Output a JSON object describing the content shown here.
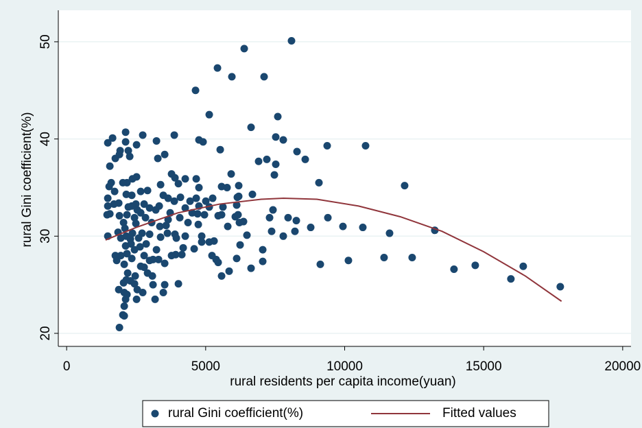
{
  "chart_data": {
    "type": "scatter",
    "x_label": "rural residents per capita income(yuan)",
    "y_label": "rural Gini coefficient(%)",
    "xlim": [
      -300,
      20300
    ],
    "ylim": [
      18.66,
      53.24
    ],
    "xticks": [
      0,
      5000,
      10000,
      15000,
      20000
    ],
    "yticks": [
      20,
      30,
      40,
      50
    ],
    "grid": true,
    "legend_position": "bottom",
    "series": [
      {
        "name": "rural Gini coefficient(%)",
        "color": "#1a476f",
        "type": "scatter",
        "x": [
          8088,
          6387,
          5425,
          5943,
          7102,
          4636,
          5129,
          7595,
          6633,
          4759,
          4907,
          7521,
          7792,
          8286,
          8582,
          9371,
          10752,
          5524,
          7200,
          6905,
          7521,
          7472,
          12157,
          9075,
          5918,
          6682,
          6189,
          5573,
          5770,
          6189,
          7422,
          7299,
          7965,
          8261,
          9396,
          8779,
          9938,
          10653,
          11615,
          13242,
          8211,
          7373,
          7792,
          7053,
          7053,
          6633,
          9124,
          10135,
          11417,
          12428,
          13932,
          14697,
          16423,
          15979,
          17755,
          6116,
          5844,
          5573,
          6239,
          6485,
          6362,
          6214,
          6066,
          5795,
          5450,
          5573,
          5622,
          5129,
          5252,
          6165,
          6116,
          6140,
          5302,
          5129,
          5376,
          5228,
          5450,
          4858,
          4858,
          4587,
          4710,
          4957,
          4513,
          4759,
          5006,
          4661,
          4439,
          4266,
          4069,
          4365,
          4735,
          4266,
          4192,
          3946,
          3921,
          4143,
          4661,
          4759,
          4266,
          4020,
          3773,
          3896,
          4094,
          3872,
          3650,
          3477,
          3872,
          3527,
          3231,
          3280,
          3724,
          3650,
          3576,
          3896,
          3625,
          3773,
          4020,
          3527,
          3477,
          3181,
          3107,
          3305,
          3527,
          3107,
          3231,
          3379,
          3354,
          3206,
          3330,
          3379,
          3058,
          2984,
          2787,
          2910,
          2836,
          2540,
          2664,
          2441,
          2713,
          2984,
          2589,
          2861,
          2787,
          2984,
          2787,
          2910,
          3083,
          2664,
          2639,
          2318,
          2441,
          2343,
          2737,
          2466,
          2441,
          2540,
          2515,
          2195,
          2293,
          2170,
          2121,
          2072,
          1874,
          2072,
          2022,
          2072,
          1899,
          2047,
          2145,
          2071,
          1800,
          1948,
          2170,
          1751,
          2121,
          2293,
          1948,
          2145,
          2367,
          2096,
          1849,
          2047,
          1899,
          2170,
          2343,
          2219,
          2490,
          2145,
          2343,
          2367,
          2170,
          2022,
          1874,
          1702,
          1726,
          1529,
          1480,
          1455,
          1554,
          1480,
          1480,
          1603,
          1554,
          1480,
          1652,
          1751,
          1924,
          2121,
          2121,
          2219,
          2269,
          1899,
          2515,
          2737,
          2515,
          2664,
          2490
        ],
        "values": [
          50.1,
          49.3,
          47.3,
          46.4,
          46.4,
          45.0,
          42.5,
          42.3,
          41.2,
          39.9,
          39.7,
          40.2,
          39.9,
          38.7,
          37.9,
          39.3,
          39.3,
          38.9,
          37.9,
          37.7,
          37.4,
          36.3,
          35.2,
          35.5,
          36.4,
          34.3,
          35.2,
          35.1,
          35.0,
          34.1,
          32.7,
          31.9,
          31.9,
          31.6,
          31.9,
          30.9,
          31.0,
          30.9,
          30.3,
          30.6,
          30.5,
          30.5,
          30.0,
          28.6,
          27.4,
          26.7,
          27.1,
          27.5,
          27.8,
          27.8,
          26.6,
          27.0,
          26.9,
          25.6,
          24.8,
          27.7,
          26.4,
          25.9,
          29.1,
          30.1,
          31.5,
          31.4,
          32.0,
          31.0,
          32.1,
          32.2,
          33.0,
          33.0,
          33.9,
          32.2,
          33.2,
          34.0,
          29.5,
          29.4,
          27.6,
          28.0,
          27.3,
          30.0,
          29.4,
          28.7,
          32.3,
          32.2,
          32.4,
          33.1,
          33.6,
          33.9,
          33.6,
          32.9,
          31.9,
          31.4,
          31.2,
          30.0,
          28.8,
          29.8,
          28.1,
          28.1,
          35.9,
          35.0,
          35.9,
          35.4,
          36.4,
          36.0,
          34.0,
          33.6,
          33.9,
          34.2,
          40.4,
          38.4,
          39.8,
          38.0,
          32.4,
          31.7,
          31.1,
          30.2,
          30.3,
          28.0,
          25.1,
          25.0,
          24.2,
          23.5,
          25.0,
          27.6,
          27.2,
          27.6,
          28.6,
          29.9,
          31.0,
          32.7,
          33.1,
          35.3,
          31.4,
          32.9,
          33.3,
          34.7,
          31.9,
          32.7,
          32.4,
          31.9,
          30.3,
          30.2,
          29.8,
          29.2,
          28.0,
          27.5,
          26.8,
          26.2,
          25.9,
          26.9,
          28.9,
          29.2,
          28.6,
          27.7,
          24.2,
          25.9,
          25.1,
          24.5,
          23.5,
          26.2,
          25.4,
          24.0,
          23.5,
          24.2,
          24.5,
          22.8,
          21.9,
          21.8,
          20.6,
          25.2,
          25.5,
          27.1,
          27.5,
          28.0,
          28.2,
          28.0,
          29.0,
          29.7,
          29.8,
          30.0,
          30.3,
          30.8,
          30.4,
          31.4,
          32.1,
          32.2,
          33.1,
          33.0,
          33.3,
          34.3,
          34.2,
          35.9,
          35.5,
          35.5,
          33.4,
          33.3,
          34.6,
          35.1,
          33.1,
          32.2,
          32.3,
          30.0,
          33.9,
          35.5,
          37.2,
          39.6,
          40.1,
          38.0,
          38.8,
          39.7,
          40.7,
          38.8,
          38.2,
          38.4,
          39.4,
          40.4,
          36.1,
          34.6,
          31.3
        ]
      },
      {
        "name": "Fitted values",
        "color": "#90353b",
        "type": "line",
        "x": [
          1400,
          2500,
          4000,
          5500,
          7000,
          7800,
          9000,
          10500,
          12000,
          13500,
          15000,
          16500,
          17800
        ],
        "values": [
          29.6,
          30.9,
          32.4,
          33.3,
          33.8,
          33.9,
          33.8,
          33.1,
          32.0,
          30.5,
          28.4,
          25.9,
          23.3
        ]
      }
    ]
  }
}
